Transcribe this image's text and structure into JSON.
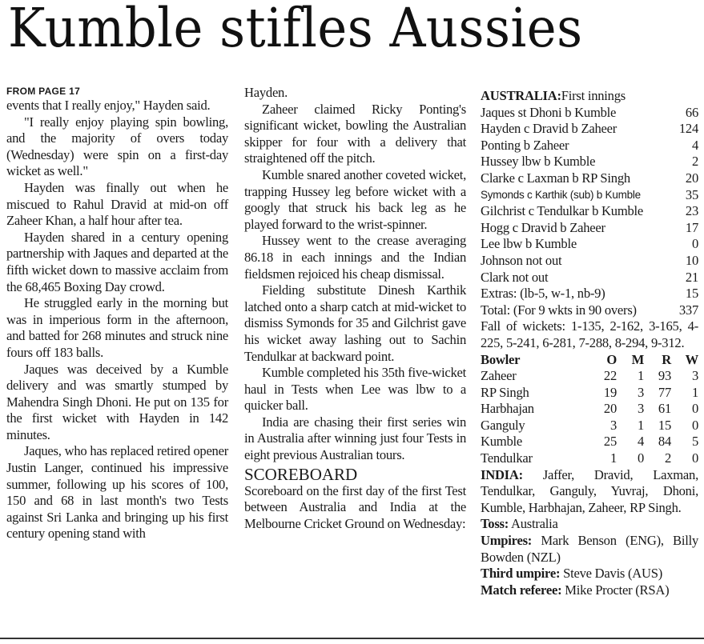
{
  "headline": "Kumble stifles Aussies",
  "kicker": "FROM PAGE 17",
  "column1": [
    {
      "text": "events that I really enjoy,\" Hayden said.",
      "indent": false
    },
    {
      "text": "\"I really enjoy playing spin bowling, and the majority of overs today (Wednesday) were spin on a first-day wicket as well.\"",
      "indent": true
    },
    {
      "text": "Hayden was finally out when he miscued to Rahul Dravid at mid-on off Zaheer Khan, a half hour after tea.",
      "indent": true
    },
    {
      "text": "Hayden shared in a century opening partnership with Jaques and departed at the fifth wicket down to massive acclaim from the 68,465 Boxing Day crowd.",
      "indent": true
    },
    {
      "text": "He struggled early in the morning but was in imperious form in the afternoon, and batted for 268 minutes and struck nine fours off 183 balls.",
      "indent": true
    },
    {
      "text": "Jaques was deceived by a Kumble delivery and was smartly stumped by Mahendra Singh Dhoni. He put on 135 for the first wicket with Hayden in 142 minutes.",
      "indent": true
    },
    {
      "text": "Jaques, who has replaced retired opener Justin Langer, continued his impressive summer, following up his scores of 100, 150 and 68 in last month's two Tests against Sri Lanka and bringing up his first century opening stand with",
      "indent": true
    }
  ],
  "column2": [
    {
      "text": "Hayden.",
      "indent": false
    },
    {
      "text": "Zaheer claimed Ricky Ponting's significant wicket, bowling the Australian skipper for four with a delivery that straightened off the pitch.",
      "indent": true
    },
    {
      "text": "Kumble snared another coveted wicket, trapping Hussey leg before wicket with a googly that struck his back leg as he played forward to the wrist-spinner.",
      "indent": true
    },
    {
      "text": "Hussey went to the crease averaging 86.18 in each innings and the Indian fieldsmen rejoiced his cheap dismissal.",
      "indent": true
    },
    {
      "text": "Fielding substitute Dinesh Karthik latched onto a sharp catch at mid-wicket to dismiss Symonds for 35 and Gilchrist gave his wicket away lashing out to Sachin Tendulkar at backward point.",
      "indent": true
    },
    {
      "text": "Kumble completed his 35th five-wicket haul in Tests when Lee was lbw to a quicker ball.",
      "indent": true
    },
    {
      "text": "India are chasing their first series win in Australia after winning just four Tests in eight previous Australian tours.",
      "indent": true
    }
  ],
  "scoreboard": {
    "heading": "SCOREBOARD",
    "intro": "Scoreboard on the first day of the first Test between Australia and India at the Melbourne Cricket Ground on Wednesday:"
  },
  "innings": {
    "team": "AUSTRALIA:",
    "label": "First innings",
    "batting": [
      {
        "batsman": "Jaques st Dhoni b Kumble",
        "runs": "66"
      },
      {
        "batsman": "Hayden c Dravid b Zaheer",
        "runs": "124"
      },
      {
        "batsman": "Ponting b Zaheer",
        "runs": "4"
      },
      {
        "batsman": "Hussey lbw b Kumble",
        "runs": "2"
      },
      {
        "batsman": "Clarke c Laxman b RP Singh",
        "runs": "20"
      },
      {
        "batsman": "Symonds c Karthik (sub) b Kumble",
        "runs": "35"
      },
      {
        "batsman": "Gilchrist c Tendulkar b Kumble",
        "runs": "23"
      },
      {
        "batsman": "Hogg c Dravid b Zaheer",
        "runs": "17"
      },
      {
        "batsman": "Lee lbw b Kumble",
        "runs": "0"
      },
      {
        "batsman": "Johnson not out",
        "runs": "10"
      },
      {
        "batsman": "Clark not out",
        "runs": "21"
      },
      {
        "batsman": "Extras: (lb-5, w-1, nb-9)",
        "runs": "15"
      },
      {
        "batsman": "Total: (For 9 wkts in 90 overs)",
        "runs": "337"
      }
    ],
    "fall_of_wickets": "Fall of wickets: 1-135, 2-162, 3-165, 4-225, 5-241, 6-281, 7-288, 8-294, 9-312.",
    "bowling_headers": [
      "Bowler",
      "O",
      "M",
      "R",
      "W"
    ],
    "bowling": [
      [
        "Zaheer",
        "22",
        "1",
        "93",
        "3"
      ],
      [
        "RP Singh",
        "19",
        "3",
        "77",
        "1"
      ],
      [
        "Harbhajan",
        "20",
        "3",
        "61",
        "0"
      ],
      [
        "Ganguly",
        "3",
        "1",
        "15",
        "0"
      ],
      [
        "Kumble",
        "25",
        "4",
        "84",
        "5"
      ],
      [
        "Tendulkar",
        "1",
        "0",
        "2",
        "0"
      ]
    ]
  },
  "india": {
    "label": "INDIA:",
    "text": "Jaffer, Dravid, Laxman, Tendulkar, Ganguly, Yuvraj, Dhoni, Kumble, Harbhajan, Zaheer, RP Singh."
  },
  "officials": [
    {
      "label": "Toss:",
      "value": "Australia"
    },
    {
      "label": "Umpires:",
      "value": "Mark Benson (ENG), Billy Bowden (NZL)"
    },
    {
      "label": "Third umpire:",
      "value": "Steve Davis (AUS)"
    },
    {
      "label": "Match referee:",
      "value": "Mike Procter (RSA)"
    }
  ]
}
